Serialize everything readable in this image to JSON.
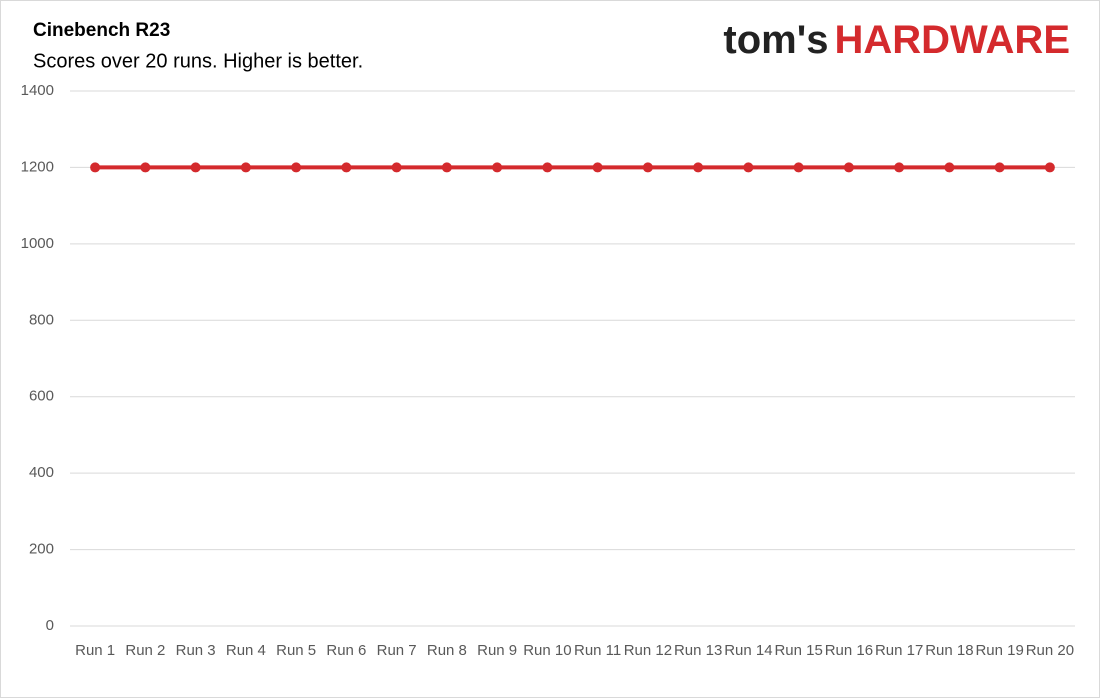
{
  "chart_data": {
    "type": "line",
    "title": "Cinebench R23",
    "subtitle": "Scores over 20 runs. Higher is better.",
    "brand": {
      "first": "tom's",
      "second": "HARDWARE"
    },
    "categories": [
      "Run 1",
      "Run 2",
      "Run 3",
      "Run 4",
      "Run 5",
      "Run 6",
      "Run 7",
      "Run 8",
      "Run 9",
      "Run 10",
      "Run 11",
      "Run 12",
      "Run 13",
      "Run 14",
      "Run 15",
      "Run 16",
      "Run 17",
      "Run 18",
      "Run 19",
      "Run 20"
    ],
    "values": [
      1200,
      1200,
      1200,
      1200,
      1200,
      1200,
      1200,
      1200,
      1200,
      1200,
      1200,
      1200,
      1200,
      1200,
      1200,
      1200,
      1200,
      1200,
      1200,
      1200
    ],
    "color": "#d42a2d",
    "ylim": [
      0,
      1400
    ],
    "yticks": [
      0,
      200,
      400,
      600,
      800,
      1000,
      1200,
      1400
    ],
    "grid": true
  }
}
